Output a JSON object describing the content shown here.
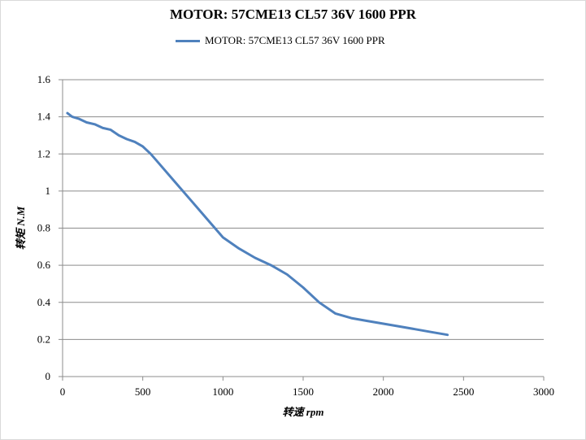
{
  "chart_data": {
    "type": "line",
    "title": "MOTOR: 57CME13 CL57 36V 1600 PPR",
    "xlabel": "转速 rpm",
    "ylabel": "转矩 N.M",
    "xlim": [
      0,
      3000
    ],
    "ylim": [
      0,
      1.6
    ],
    "xticks": [
      "0",
      "500",
      "1000",
      "1500",
      "2000",
      "2500",
      "3000"
    ],
    "yticks": [
      "0",
      "0.2",
      "0.4",
      "0.6",
      "0.8",
      "1",
      "1.2",
      "1.4",
      "1.6"
    ],
    "grid": "horizontal",
    "legend_position": "top",
    "series": [
      {
        "name": "MOTOR: 57CME13 CL57 36V 1600 PPR",
        "color": "#4f81bd",
        "x": [
          30,
          60,
          100,
          150,
          200,
          250,
          300,
          350,
          400,
          450,
          500,
          550,
          600,
          700,
          800,
          900,
          1000,
          1100,
          1200,
          1300,
          1400,
          1500,
          1600,
          1700,
          1800,
          1900,
          2000,
          2100,
          2200,
          2300,
          2400
        ],
        "y": [
          1.42,
          1.4,
          1.39,
          1.37,
          1.36,
          1.34,
          1.33,
          1.3,
          1.28,
          1.265,
          1.24,
          1.2,
          1.15,
          1.05,
          0.95,
          0.85,
          0.75,
          0.69,
          0.64,
          0.6,
          0.55,
          0.48,
          0.4,
          0.34,
          0.315,
          0.3,
          0.285,
          0.27,
          0.255,
          0.24,
          0.225
        ]
      }
    ]
  }
}
